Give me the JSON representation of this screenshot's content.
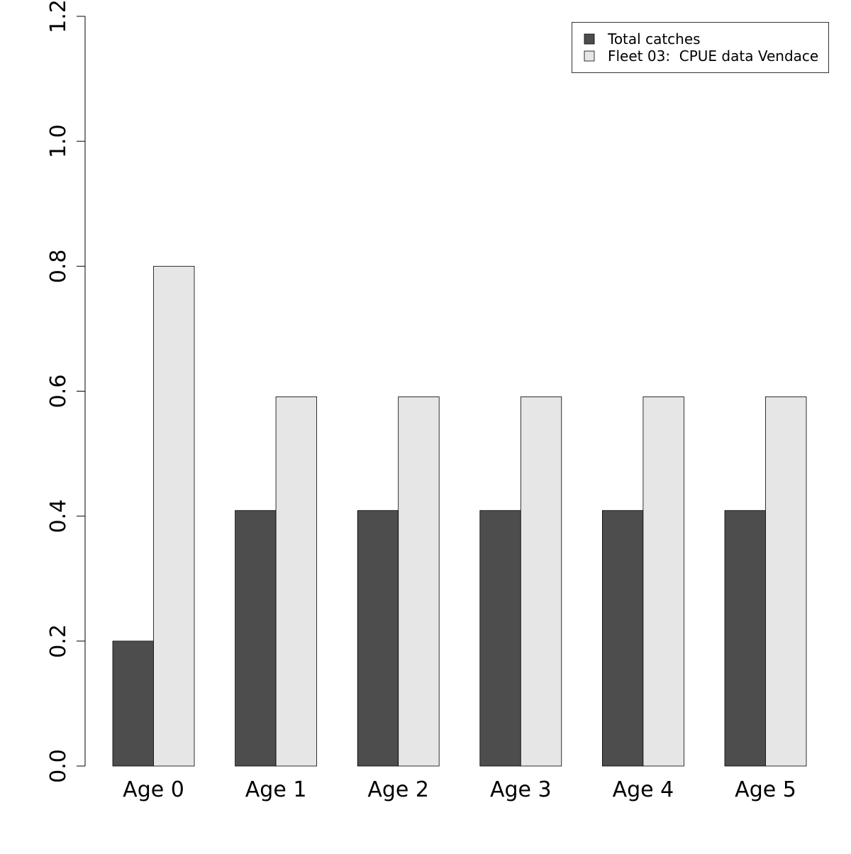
{
  "chart_data": {
    "type": "bar",
    "title": "",
    "xlabel": "",
    "ylabel": "",
    "categories": [
      "Age 0",
      "Age 1",
      "Age 2",
      "Age 3",
      "Age 4",
      "Age 5"
    ],
    "series": [
      {
        "name": "Total catches",
        "color": "#4d4d4d",
        "values": [
          0.2,
          0.409,
          0.409,
          0.409,
          0.409,
          0.409
        ]
      },
      {
        "name": "Fleet 03:  CPUE data Vendace",
        "color": "#e6e6e6",
        "values": [
          0.8,
          0.591,
          0.591,
          0.591,
          0.591,
          0.591
        ]
      }
    ],
    "ylim": [
      0,
      1.2
    ],
    "yticks": [
      "0.0",
      "0.2",
      "0.4",
      "0.6",
      "0.8",
      "1.0",
      "1.2"
    ],
    "grid": false,
    "legend_position": "top-right"
  }
}
